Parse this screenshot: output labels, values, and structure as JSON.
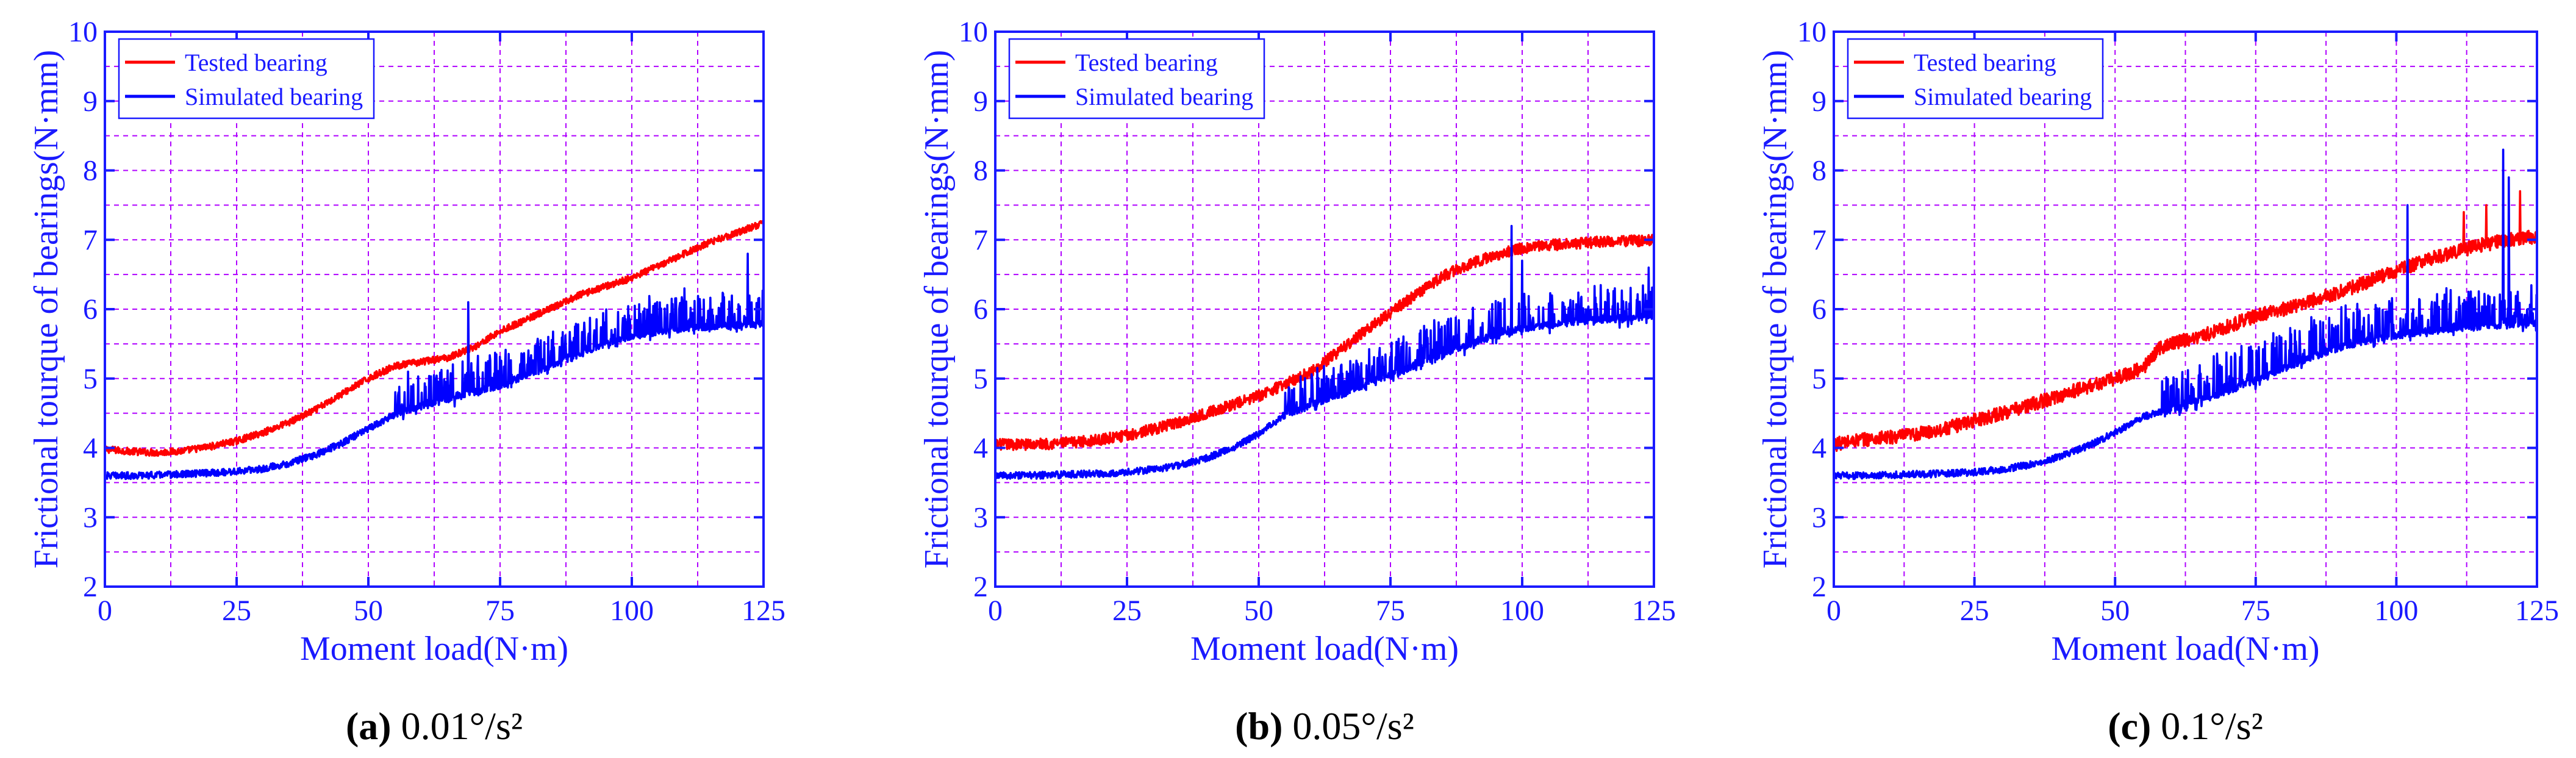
{
  "figure": {
    "colors": {
      "axis": "#1a1aff",
      "grid": "#b000ff",
      "tested": "#ff0000",
      "simulated": "#0000ff",
      "caption_text": "#000000"
    },
    "icons": [
      "legend-line-tested-icon",
      "legend-line-simulated-icon"
    ]
  },
  "chart_data": [
    {
      "type": "line",
      "panel": "a",
      "caption_letter": "(a)",
      "caption_text": " 0.01°/s²",
      "xlabel": "Moment load(N·m)",
      "ylabel": "Frictional tourque of bearings(N·mm)",
      "xlim": [
        0,
        125
      ],
      "ylim": [
        2,
        10
      ],
      "xticks": [
        0,
        25,
        50,
        75,
        100,
        125
      ],
      "yticks": [
        2,
        3,
        4,
        5,
        6,
        7,
        8,
        9,
        10
      ],
      "grid": true,
      "legend": "top-left",
      "series": [
        {
          "name": "Tested bearing",
          "color": "#ff0000",
          "x": [
            0,
            5,
            10,
            15,
            20,
            25,
            30,
            35,
            40,
            45,
            50,
            55,
            60,
            65,
            70,
            75,
            80,
            85,
            90,
            95,
            100,
            105,
            110,
            115,
            120,
            125
          ],
          "y": [
            3.98,
            3.95,
            3.93,
            3.96,
            4.02,
            4.1,
            4.22,
            4.37,
            4.55,
            4.78,
            5.0,
            5.18,
            5.24,
            5.3,
            5.45,
            5.68,
            5.85,
            6.02,
            6.2,
            6.33,
            6.45,
            6.62,
            6.8,
            6.97,
            7.1,
            7.25
          ],
          "noise": 0.05
        },
        {
          "name": "Simulated bearing",
          "color": "#0000ff",
          "x": [
            0,
            5,
            10,
            15,
            20,
            25,
            30,
            35,
            40,
            45,
            50,
            55,
            60,
            65,
            70,
            75,
            80,
            85,
            90,
            95,
            100,
            105,
            110,
            115,
            120,
            125
          ],
          "y": [
            3.6,
            3.6,
            3.61,
            3.62,
            3.64,
            3.66,
            3.7,
            3.78,
            3.9,
            4.07,
            4.28,
            4.48,
            4.6,
            4.7,
            4.8,
            4.9,
            5.05,
            5.2,
            5.35,
            5.5,
            5.6,
            5.68,
            5.72,
            5.75,
            5.77,
            5.8
          ],
          "noise": 0.05,
          "spike_start": 55,
          "spike_amp": 0.5,
          "peaks": [
            [
              69,
              6.1
            ],
            [
              122,
              6.8
            ],
            [
              110,
              6.3
            ],
            [
              57.5,
              5.1
            ]
          ]
        }
      ]
    },
    {
      "type": "line",
      "panel": "b",
      "caption_letter": "(b)",
      "caption_text": " 0.05°/s²",
      "xlabel": "Moment load(N·m)",
      "ylabel": "Frictional tourque of bearings(N·mm)",
      "xlim": [
        0,
        125
      ],
      "ylim": [
        2,
        10
      ],
      "xticks": [
        0,
        25,
        50,
        75,
        100,
        125
      ],
      "yticks": [
        2,
        3,
        4,
        5,
        6,
        7,
        8,
        9,
        10
      ],
      "grid": true,
      "legend": "top-right",
      "series": [
        {
          "name": "Tested bearing",
          "color": "#ff0000",
          "x": [
            0,
            5,
            10,
            15,
            20,
            25,
            30,
            35,
            40,
            45,
            50,
            55,
            60,
            65,
            70,
            75,
            80,
            85,
            90,
            95,
            100,
            105,
            110,
            115,
            120,
            125
          ],
          "y": [
            4.05,
            4.05,
            4.06,
            4.08,
            4.12,
            4.18,
            4.27,
            4.37,
            4.5,
            4.62,
            4.75,
            4.92,
            5.1,
            5.38,
            5.68,
            5.95,
            6.22,
            6.48,
            6.65,
            6.78,
            6.88,
            6.92,
            6.95,
            6.97,
            6.98,
            7.0
          ],
          "noise": 0.08
        },
        {
          "name": "Simulated bearing",
          "color": "#0000ff",
          "x": [
            0,
            5,
            10,
            15,
            20,
            25,
            30,
            35,
            40,
            45,
            50,
            55,
            60,
            65,
            70,
            75,
            80,
            85,
            90,
            95,
            100,
            105,
            110,
            115,
            120,
            125
          ],
          "y": [
            3.6,
            3.6,
            3.61,
            3.62,
            3.63,
            3.65,
            3.69,
            3.75,
            3.85,
            4.0,
            4.2,
            4.48,
            4.62,
            4.75,
            4.9,
            5.05,
            5.2,
            5.35,
            5.5,
            5.62,
            5.72,
            5.78,
            5.82,
            5.85,
            5.87,
            5.9
          ],
          "noise": 0.05,
          "spike_start": 55,
          "spike_amp": 0.5,
          "peaks": [
            [
              98,
              7.2
            ],
            [
              124,
              6.6
            ],
            [
              100,
              6.7
            ]
          ]
        }
      ]
    },
    {
      "type": "line",
      "panel": "c",
      "caption_letter": "(c)",
      "caption_text": " 0.1°/s²",
      "xlabel": "Moment load(N·m)",
      "ylabel": "Frictional tourque of bearings(N·mm)",
      "xlim": [
        0,
        125
      ],
      "ylim": [
        2,
        10
      ],
      "xticks": [
        0,
        25,
        50,
        75,
        100,
        125
      ],
      "yticks": [
        2,
        3,
        4,
        5,
        6,
        7,
        8,
        9,
        10
      ],
      "grid": true,
      "legend": "top-left",
      "series": [
        {
          "name": "Tested bearing",
          "color": "#ff0000",
          "x": [
            0,
            5,
            10,
            15,
            20,
            25,
            30,
            35,
            40,
            45,
            50,
            55,
            58,
            62,
            65,
            70,
            75,
            80,
            85,
            90,
            95,
            100,
            105,
            110,
            115,
            120,
            125
          ],
          "y": [
            4.05,
            4.12,
            4.15,
            4.2,
            4.28,
            4.4,
            4.5,
            4.62,
            4.75,
            4.88,
            5.0,
            5.15,
            5.45,
            5.55,
            5.6,
            5.75,
            5.9,
            6.0,
            6.12,
            6.25,
            6.4,
            6.55,
            6.7,
            6.82,
            6.92,
            7.0,
            7.05
          ],
          "noise": 0.1,
          "peaks": [
            [
              122,
              7.7
            ],
            [
              116,
              7.5
            ],
            [
              112,
              7.4
            ]
          ]
        },
        {
          "name": "Simulated bearing",
          "color": "#0000ff",
          "x": [
            0,
            5,
            10,
            15,
            20,
            25,
            30,
            35,
            40,
            45,
            50,
            55,
            60,
            65,
            70,
            75,
            80,
            85,
            90,
            95,
            100,
            105,
            110,
            115,
            120,
            125
          ],
          "y": [
            3.6,
            3.6,
            3.61,
            3.62,
            3.63,
            3.65,
            3.69,
            3.76,
            3.87,
            4.02,
            4.22,
            4.45,
            4.55,
            4.68,
            4.82,
            4.98,
            5.15,
            5.3,
            5.45,
            5.55,
            5.62,
            5.68,
            5.72,
            5.75,
            5.77,
            5.8
          ],
          "noise": 0.05,
          "spike_start": 58,
          "spike_amp": 0.55,
          "peaks": [
            [
              102,
              7.5
            ],
            [
              119,
              8.3
            ],
            [
              120,
              7.9
            ],
            [
              60,
              4.9
            ]
          ]
        }
      ]
    }
  ]
}
